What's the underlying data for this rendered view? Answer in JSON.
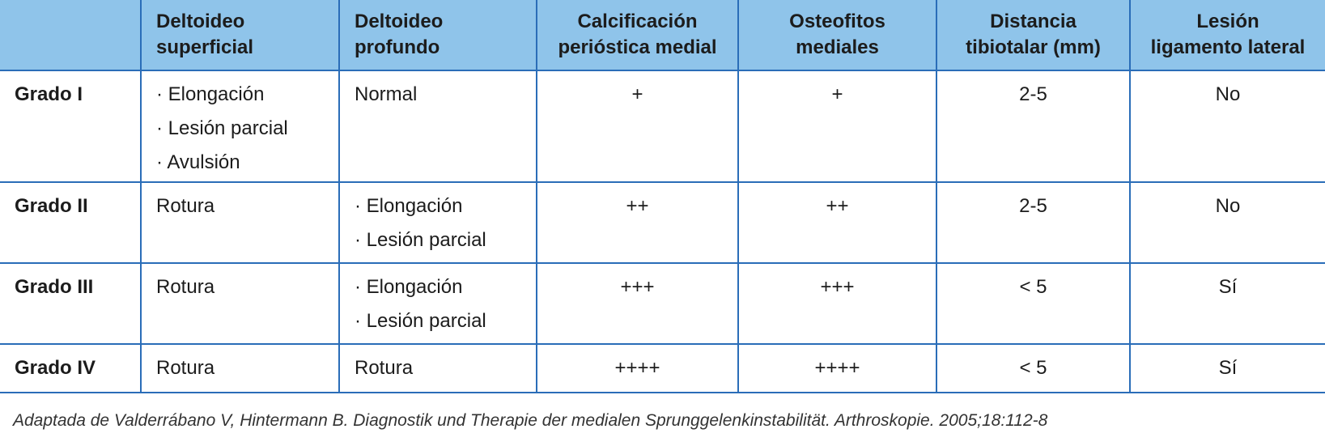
{
  "table": {
    "header": [
      [
        "Deltoideo",
        "superficial"
      ],
      [
        "Deltoideo",
        "profundo"
      ],
      [
        "Calcificación",
        "perióstica medial"
      ],
      [
        "Osteofitos",
        "mediales"
      ],
      [
        "Distancia",
        "tibiotalar (mm)"
      ],
      [
        "Lesión",
        "ligamento lateral"
      ]
    ],
    "rows": [
      {
        "grade": "Grado I",
        "cells": [
          [
            "· Elongación",
            "· Lesión parcial",
            "· Avulsión"
          ],
          [
            "Normal"
          ],
          [
            "+"
          ],
          [
            "+"
          ],
          [
            "2-5"
          ],
          [
            "No"
          ]
        ]
      },
      {
        "grade": "Grado II",
        "cells": [
          [
            "Rotura"
          ],
          [
            "· Elongación",
            "· Lesión parcial"
          ],
          [
            "++"
          ],
          [
            "++"
          ],
          [
            "2-5"
          ],
          [
            "No"
          ]
        ]
      },
      {
        "grade": "Grado III",
        "cells": [
          [
            "Rotura"
          ],
          [
            "· Elongación",
            "· Lesión parcial"
          ],
          [
            "+++"
          ],
          [
            "+++"
          ],
          [
            "< 5"
          ],
          [
            "Sí"
          ]
        ]
      },
      {
        "grade": "Grado IV",
        "cells": [
          [
            "Rotura"
          ],
          [
            "Rotura"
          ],
          [
            "++++"
          ],
          [
            "++++"
          ],
          [
            "< 5"
          ],
          [
            "Sí"
          ]
        ]
      }
    ]
  },
  "footnote": "Adaptada de Valderrábano V, Hintermann B. Diagnostik und Therapie der medialen Sprunggelenkinstabilität. Arthroskopie. 2005;18:112-8"
}
